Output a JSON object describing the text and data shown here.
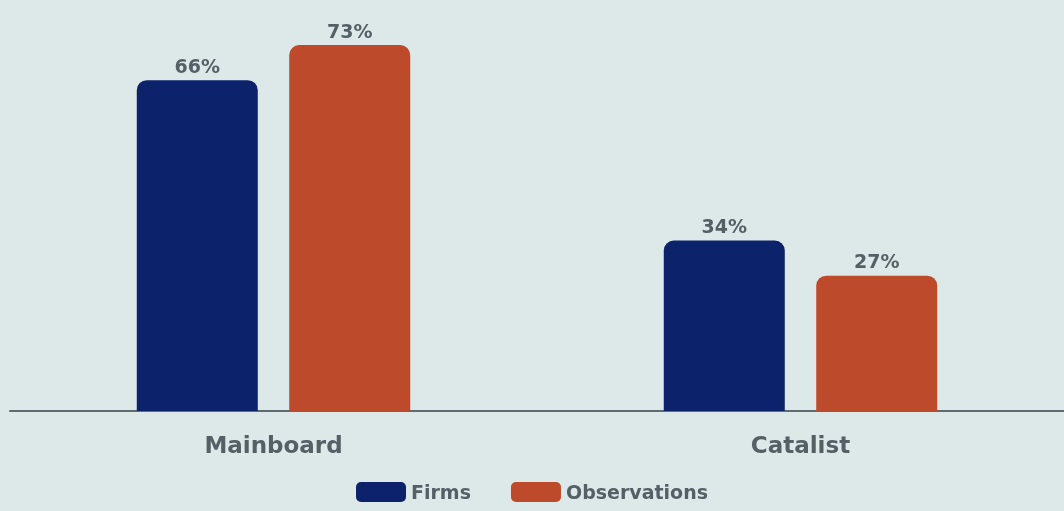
{
  "chart_data": {
    "type": "bar",
    "categories": [
      "Mainboard",
      "Catalist"
    ],
    "series": [
      {
        "name": "Firms",
        "color": "#0c226b",
        "values": [
          66,
          34
        ],
        "value_labels": [
          "66%",
          "34%"
        ]
      },
      {
        "name": "Observations",
        "color": "#bd4a2b",
        "values": [
          73,
          27
        ],
        "value_labels": [
          "73%",
          "27%"
        ]
      }
    ],
    "legend": "bottom"
  }
}
